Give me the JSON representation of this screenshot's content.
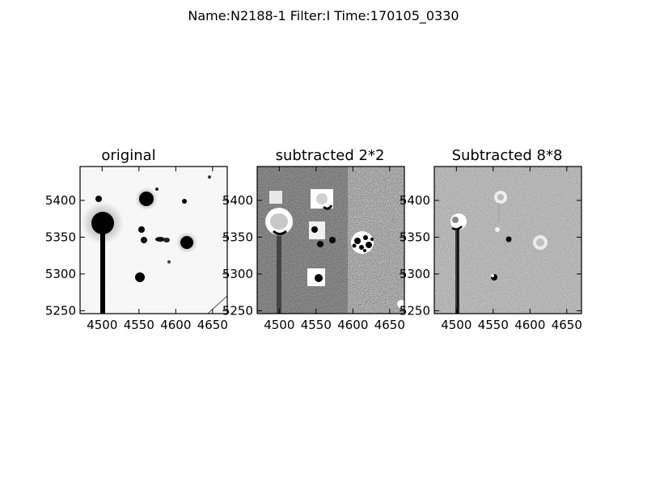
{
  "figure": {
    "suptitle": "Name:N2188-1 Filter:I Time:170105_0330"
  },
  "panels": [
    {
      "title": "original"
    },
    {
      "title": "subtracted 2*2"
    },
    {
      "title": "Subtracted 8*8"
    }
  ],
  "axes": {
    "x_ticks": [
      "4500",
      "4550",
      "4600",
      "4650"
    ],
    "y_ticks": [
      "5400",
      "5350",
      "5300",
      "5250"
    ],
    "x_range": [
      4482,
      4682
    ],
    "y_range": [
      5246,
      5446
    ]
  }
}
